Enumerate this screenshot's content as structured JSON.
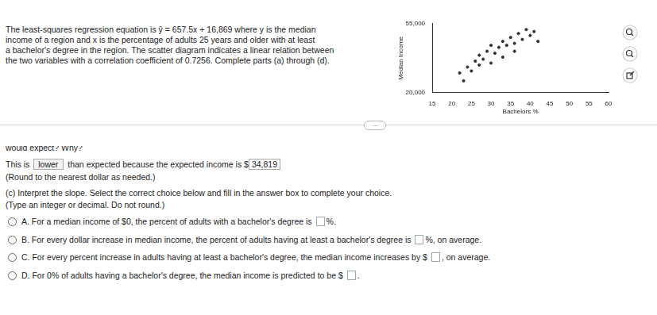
{
  "problem": {
    "lines": [
      "The least-squares regression equation is ŷ = 657.5x + 16,869 where y is the median",
      "income of a region and x is the percentage of adults 25 years and older with at least",
      "a bachelor's degree in the region. The scatter diagram indicates a linear relation between",
      "the two variables with a correlation coefficient of 0.7256. Complete parts (a) through (d)."
    ],
    "more": "...",
    "cut_line": "would expect? Why?",
    "answer_line": {
      "prefix": "This is",
      "choice": "lower",
      "middle": "than expected because the expected income is $",
      "value": "34,819"
    },
    "round_note": "(Round to the nearest dollar as needed.)",
    "part_c": "(c) Interpret the slope. Select the correct choice below and fill in the answer box to complete your choice.",
    "type_note": "(Type an integer or decimal. Do not round.)",
    "options": [
      {
        "letter": "A.",
        "before": "For a median income of $0, the percent of adults with a bachelor's degree is",
        "after": "%."
      },
      {
        "letter": "B.",
        "before": "For every dollar increase in median income, the percent of adults having at least a bachelor's degree is",
        "after": "%, on average."
      },
      {
        "letter": "C.",
        "before": "For every percent increase in adults having at least a bachelor's degree, the median income increases by $",
        "after": ", on average."
      },
      {
        "letter": "D.",
        "before": "For 0% of adults having a bachelor's degree, the median income is predicted to be $",
        "after": "."
      }
    ]
  },
  "chart_data": {
    "type": "scatter",
    "x_label": "Bachelors %",
    "y_label": "Median Income",
    "x": [
      22,
      23,
      24,
      25,
      26,
      27,
      27,
      28,
      29,
      30,
      30,
      31,
      32,
      33,
      33,
      34,
      35,
      36,
      36,
      37,
      38,
      39,
      40,
      41,
      42
    ],
    "values": [
      30000,
      26000,
      33000,
      31000,
      36000,
      34000,
      39000,
      37000,
      41000,
      35000,
      44000,
      40000,
      43000,
      38000,
      46000,
      44000,
      48000,
      45000,
      41000,
      50000,
      47000,
      52000,
      49000,
      51000,
      46000
    ],
    "color": "#333333",
    "marker": "circle",
    "xlim": [
      15,
      60
    ],
    "xticks": [
      15,
      20,
      25,
      30,
      35,
      40,
      45,
      50,
      55,
      60
    ],
    "ylim": [
      20000,
      55000
    ],
    "yticks": [
      20000,
      55000
    ],
    "grid": false
  }
}
